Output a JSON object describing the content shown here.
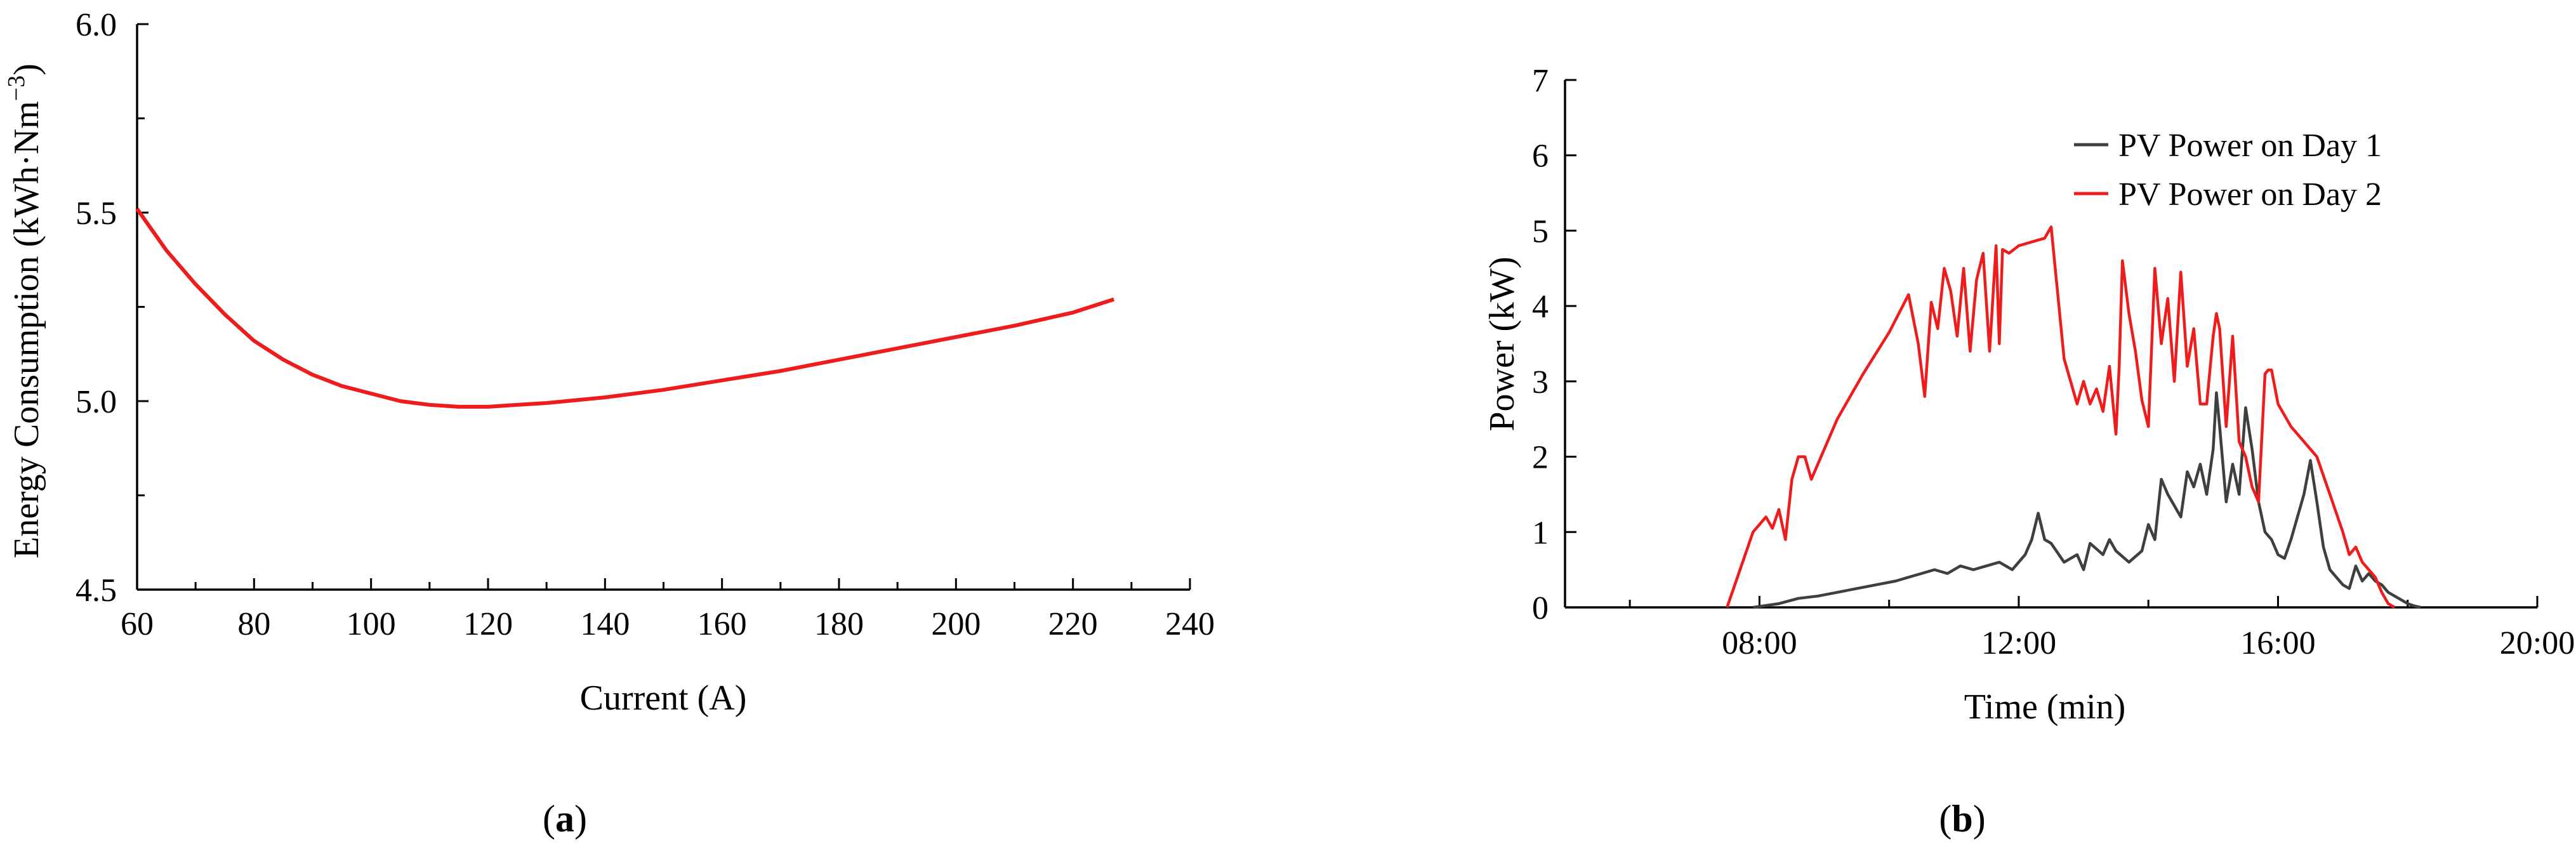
{
  "colors": {
    "red": "#ee1c1c",
    "dark": "#3f3f3f"
  },
  "panels": {
    "a": {
      "label_open": "(",
      "label_letter": "a",
      "label_close": ")"
    },
    "b": {
      "label_open": "(",
      "label_letter": "b",
      "label_close": ")"
    }
  },
  "chart_data": [
    {
      "type": "line",
      "id": "a",
      "xlabel": "Current (A)",
      "ylabel": "Energy Consumption (kWh·Nm",
      "ylabel_sup": "−3",
      "ylabel_close": ")",
      "xlim": [
        60,
        240
      ],
      "ylim": [
        4.5,
        6.0
      ],
      "xticks": [
        60,
        80,
        100,
        120,
        140,
        160,
        180,
        200,
        220,
        240
      ],
      "yticks": [
        "4.5",
        "5.0",
        "5.5",
        "6.0"
      ],
      "series": [
        {
          "color": "#ee1c1c",
          "x": [
            60,
            65,
            70,
            75,
            80,
            85,
            90,
            95,
            100,
            105,
            110,
            115,
            120,
            125,
            130,
            140,
            150,
            160,
            170,
            180,
            190,
            200,
            210,
            220,
            227
          ],
          "y": [
            5.51,
            5.4,
            5.31,
            5.23,
            5.16,
            5.11,
            5.07,
            5.04,
            5.02,
            5.0,
            4.99,
            4.985,
            4.985,
            4.99,
            4.995,
            5.01,
            5.03,
            5.055,
            5.08,
            5.11,
            5.14,
            5.17,
            5.2,
            5.235,
            5.27
          ]
        }
      ]
    },
    {
      "type": "line",
      "id": "b",
      "xlabel": "Time (min)",
      "ylabel": "Power (kW)",
      "xlim": [
        5,
        20
      ],
      "ylim": [
        0,
        7
      ],
      "xticks": [
        8,
        12,
        16,
        20
      ],
      "xtick_labels": [
        "08:00",
        "12:00",
        "16:00",
        "20:00"
      ],
      "yticks": [
        "0",
        "1",
        "2",
        "3",
        "4",
        "5",
        "6",
        "7"
      ],
      "legend_position": "top-right",
      "series": [
        {
          "name": "PV Power on Day 1",
          "color": "#3f3f3f",
          "x": [
            7.9,
            8.3,
            8.6,
            8.9,
            9.2,
            9.5,
            9.8,
            10.1,
            10.3,
            10.5,
            10.7,
            10.9,
            11.1,
            11.3,
            11.5,
            11.7,
            11.9,
            12.1,
            12.2,
            12.3,
            12.4,
            12.5,
            12.7,
            12.9,
            13.0,
            13.1,
            13.3,
            13.4,
            13.5,
            13.7,
            13.9,
            14.0,
            14.1,
            14.2,
            14.3,
            14.5,
            14.6,
            14.7,
            14.8,
            14.9,
            15.0,
            15.05,
            15.1,
            15.2,
            15.3,
            15.4,
            15.5,
            15.6,
            15.7,
            15.8,
            15.9,
            16.0,
            16.1,
            16.2,
            16.3,
            16.4,
            16.5,
            16.6,
            16.7,
            16.8,
            16.9,
            17.0,
            17.1,
            17.2,
            17.3,
            17.4,
            17.5,
            17.6,
            17.7,
            17.8,
            17.9,
            18.0,
            18.1,
            18.2
          ],
          "y": [
            0.0,
            0.05,
            0.12,
            0.15,
            0.2,
            0.25,
            0.3,
            0.35,
            0.4,
            0.45,
            0.5,
            0.45,
            0.55,
            0.5,
            0.55,
            0.6,
            0.5,
            0.7,
            0.9,
            1.25,
            0.9,
            0.85,
            0.6,
            0.7,
            0.5,
            0.85,
            0.7,
            0.9,
            0.75,
            0.6,
            0.75,
            1.1,
            0.9,
            1.7,
            1.5,
            1.2,
            1.8,
            1.6,
            1.9,
            1.5,
            2.1,
            2.85,
            2.4,
            1.4,
            1.9,
            1.5,
            2.65,
            2.1,
            1.4,
            1.0,
            0.9,
            0.7,
            0.65,
            0.9,
            1.2,
            1.5,
            1.95,
            1.4,
            0.8,
            0.5,
            0.4,
            0.3,
            0.25,
            0.55,
            0.35,
            0.45,
            0.35,
            0.3,
            0.2,
            0.15,
            0.1,
            0.05,
            0.02,
            0.0
          ]
        },
        {
          "name": "PV Power on Day 2",
          "color": "#ee1c1c",
          "x": [
            7.5,
            7.7,
            7.9,
            8.1,
            8.2,
            8.3,
            8.4,
            8.5,
            8.6,
            8.7,
            8.8,
            9.2,
            9.6,
            10.0,
            10.3,
            10.45,
            10.55,
            10.65,
            10.75,
            10.85,
            10.95,
            11.05,
            11.15,
            11.25,
            11.35,
            11.45,
            11.55,
            11.65,
            11.7,
            11.75,
            11.85,
            12.0,
            12.2,
            12.4,
            12.5,
            12.7,
            12.9,
            13.0,
            13.1,
            13.2,
            13.3,
            13.4,
            13.5,
            13.55,
            13.6,
            13.7,
            13.8,
            13.9,
            14.0,
            14.1,
            14.2,
            14.3,
            14.4,
            14.5,
            14.6,
            14.7,
            14.8,
            14.9,
            15.0,
            15.05,
            15.1,
            15.2,
            15.3,
            15.4,
            15.5,
            15.6,
            15.7,
            15.8,
            15.85,
            15.9,
            16.0,
            16.2,
            16.4,
            16.6,
            16.8,
            17.0,
            17.1,
            17.2,
            17.3,
            17.4,
            17.5,
            17.6,
            17.7,
            17.8
          ],
          "y": [
            0.0,
            0.5,
            1.0,
            1.2,
            1.05,
            1.3,
            0.9,
            1.7,
            2.0,
            2.0,
            1.7,
            2.5,
            3.1,
            3.65,
            4.15,
            3.5,
            2.8,
            4.05,
            3.7,
            4.5,
            4.2,
            3.6,
            4.5,
            3.4,
            4.35,
            4.7,
            3.4,
            4.8,
            3.5,
            4.75,
            4.7,
            4.8,
            4.85,
            4.9,
            5.05,
            3.3,
            2.7,
            3.0,
            2.7,
            2.9,
            2.6,
            3.2,
            2.3,
            3.2,
            4.6,
            3.9,
            3.4,
            2.75,
            2.4,
            4.5,
            3.5,
            4.1,
            3.0,
            4.45,
            3.2,
            3.7,
            2.7,
            2.7,
            3.6,
            3.9,
            3.7,
            2.4,
            3.6,
            2.2,
            2.0,
            1.6,
            1.4,
            3.1,
            3.15,
            3.15,
            2.7,
            2.4,
            2.2,
            2.0,
            1.5,
            1.0,
            0.7,
            0.8,
            0.6,
            0.5,
            0.4,
            0.2,
            0.05,
            0.0
          ]
        }
      ]
    }
  ]
}
